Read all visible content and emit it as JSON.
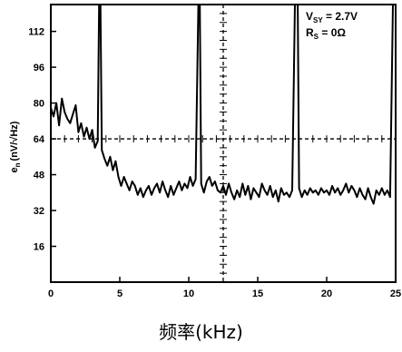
{
  "chart_data": {
    "type": "line",
    "xlabel": "频率(kHz)",
    "ylabel": "e",
    "ylabel_sub": "n",
    "ylabel_unit": "(nV/√Hz)",
    "xlim": [
      0,
      25
    ],
    "ylim": [
      0,
      124
    ],
    "xticks": [
      0,
      5,
      10,
      15,
      20,
      25
    ],
    "xtick_labels": [
      "0",
      "5",
      "10",
      "15",
      "20",
      "25"
    ],
    "yticks": [
      16,
      32,
      48,
      64,
      80,
      96,
      112
    ],
    "ytick_labels": [
      "16",
      "32",
      "48",
      "64",
      "80",
      "96",
      "112"
    ],
    "grid": "dashed cross at x=12.5 and y=64",
    "annotation": {
      "line1": {
        "main": "V",
        "sub": "SY",
        "rest": " = 2.7V"
      },
      "line2": {
        "main": "R",
        "sub": "S",
        "rest": " = 0Ω"
      }
    },
    "series": [
      {
        "color": "#000000",
        "points": [
          [
            0.0,
            78
          ],
          [
            0.2,
            74
          ],
          [
            0.4,
            80
          ],
          [
            0.6,
            70
          ],
          [
            0.8,
            82
          ],
          [
            1.0,
            76
          ],
          [
            1.2,
            73
          ],
          [
            1.4,
            71
          ],
          [
            1.6,
            75
          ],
          [
            1.8,
            79
          ],
          [
            2.0,
            67
          ],
          [
            2.2,
            71
          ],
          [
            2.4,
            65
          ],
          [
            2.6,
            69
          ],
          [
            2.8,
            64
          ],
          [
            3.0,
            68
          ],
          [
            3.2,
            60
          ],
          [
            3.4,
            63
          ],
          [
            3.5,
            124
          ],
          [
            3.6,
            124
          ],
          [
            3.7,
            59
          ],
          [
            3.9,
            55
          ],
          [
            4.1,
            52
          ],
          [
            4.3,
            56
          ],
          [
            4.5,
            50
          ],
          [
            4.7,
            54
          ],
          [
            4.9,
            47
          ],
          [
            5.1,
            43
          ],
          [
            5.3,
            47
          ],
          [
            5.5,
            44
          ],
          [
            5.7,
            41
          ],
          [
            5.9,
            45
          ],
          [
            6.1,
            43
          ],
          [
            6.3,
            39
          ],
          [
            6.5,
            42
          ],
          [
            6.7,
            38
          ],
          [
            6.9,
            41
          ],
          [
            7.1,
            43
          ],
          [
            7.3,
            39
          ],
          [
            7.5,
            42
          ],
          [
            7.7,
            44
          ],
          [
            7.9,
            40
          ],
          [
            8.1,
            45
          ],
          [
            8.3,
            41
          ],
          [
            8.5,
            38
          ],
          [
            8.7,
            43
          ],
          [
            8.9,
            39
          ],
          [
            9.1,
            42
          ],
          [
            9.3,
            45
          ],
          [
            9.5,
            41
          ],
          [
            9.7,
            44
          ],
          [
            9.9,
            42
          ],
          [
            10.1,
            47
          ],
          [
            10.3,
            43
          ],
          [
            10.5,
            46
          ],
          [
            10.7,
            124
          ],
          [
            10.8,
            124
          ],
          [
            10.9,
            44
          ],
          [
            11.1,
            40
          ],
          [
            11.3,
            45
          ],
          [
            11.5,
            47
          ],
          [
            11.7,
            43
          ],
          [
            11.9,
            45
          ],
          [
            12.1,
            41
          ],
          [
            12.3,
            40
          ],
          [
            12.5,
            43
          ],
          [
            12.7,
            39
          ],
          [
            12.9,
            44
          ],
          [
            13.1,
            40
          ],
          [
            13.3,
            37
          ],
          [
            13.5,
            41
          ],
          [
            13.7,
            38
          ],
          [
            13.9,
            44
          ],
          [
            14.1,
            39
          ],
          [
            14.3,
            43
          ],
          [
            14.5,
            37
          ],
          [
            14.7,
            42
          ],
          [
            14.9,
            40
          ],
          [
            15.1,
            38
          ],
          [
            15.3,
            44
          ],
          [
            15.5,
            41
          ],
          [
            15.7,
            39
          ],
          [
            15.9,
            43
          ],
          [
            16.1,
            38
          ],
          [
            16.3,
            41
          ],
          [
            16.5,
            36
          ],
          [
            16.7,
            42
          ],
          [
            16.9,
            39
          ],
          [
            17.1,
            40
          ],
          [
            17.3,
            38
          ],
          [
            17.5,
            41
          ],
          [
            17.7,
            124
          ],
          [
            17.9,
            124
          ],
          [
            18.0,
            42
          ],
          [
            18.2,
            38
          ],
          [
            18.4,
            41
          ],
          [
            18.6,
            39
          ],
          [
            18.8,
            42
          ],
          [
            19.0,
            40
          ],
          [
            19.2,
            41
          ],
          [
            19.4,
            39
          ],
          [
            19.6,
            42
          ],
          [
            19.8,
            40
          ],
          [
            20.0,
            41
          ],
          [
            20.2,
            39
          ],
          [
            20.4,
            43
          ],
          [
            20.6,
            40
          ],
          [
            20.8,
            42
          ],
          [
            21.0,
            39
          ],
          [
            21.2,
            41
          ],
          [
            21.4,
            44
          ],
          [
            21.6,
            40
          ],
          [
            21.8,
            43
          ],
          [
            22.0,
            41
          ],
          [
            22.2,
            38
          ],
          [
            22.4,
            42
          ],
          [
            22.6,
            39
          ],
          [
            22.8,
            37
          ],
          [
            23.0,
            42
          ],
          [
            23.2,
            38
          ],
          [
            23.4,
            35
          ],
          [
            23.6,
            41
          ],
          [
            23.8,
            39
          ],
          [
            24.0,
            42
          ],
          [
            24.2,
            39
          ],
          [
            24.4,
            41
          ],
          [
            24.6,
            38
          ],
          [
            24.8,
            124
          ],
          [
            24.9,
            124
          ],
          [
            25.0,
            124
          ]
        ]
      }
    ]
  }
}
